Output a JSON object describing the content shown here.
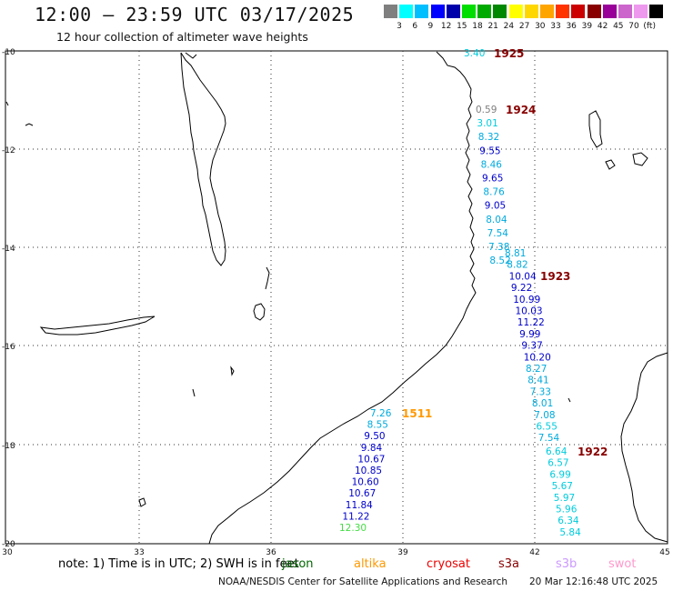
{
  "title": "12:00 – 23:59 UTC 03/17/2025",
  "subtitle": "12 hour collection of altimeter wave heights",
  "scale": {
    "colors": [
      "#7f7f7f",
      "#00ffff",
      "#00bfff",
      "#0000ff",
      "#0000aa",
      "#00dd00",
      "#00aa00",
      "#008800",
      "#ffff00",
      "#ffd700",
      "#ffa500",
      "#ff3300",
      "#cc0000",
      "#880000",
      "#990099",
      "#cc66cc",
      "#ee99ee",
      "#000000"
    ],
    "labels": [
      "3",
      "6",
      "9",
      "12",
      "15",
      "18",
      "21",
      "24",
      "27",
      "30",
      "33",
      "36",
      "39",
      "42",
      "45",
      "70",
      "(ft)"
    ]
  },
  "axes": {
    "lat_labels": [
      "-10",
      "-12",
      "-14",
      "-16",
      "-18",
      "-20"
    ],
    "lon_labels": [
      "30",
      "33",
      "36",
      "39",
      "42",
      "45"
    ]
  },
  "passes": [
    {
      "label": "1925",
      "color": "#880000"
    },
    {
      "label": "1924",
      "color": "#880000"
    },
    {
      "label": "1923",
      "color": "#880000"
    },
    {
      "label": "1922",
      "color": "#880000"
    },
    {
      "label": "1511",
      "color": "#ff9900"
    }
  ],
  "tracks": [
    {
      "name": "1925",
      "values": [
        {
          "v": "3.40",
          "c": "#00ccdd"
        }
      ]
    },
    {
      "name": "1924",
      "values": [
        {
          "v": "0.59",
          "c": "#7f7f7f"
        },
        {
          "v": "3.01",
          "c": "#00ccdd"
        },
        {
          "v": "8.32",
          "c": "#00aadd"
        },
        {
          "v": "9.55",
          "c": "#0000cc"
        },
        {
          "v": "8.46",
          "c": "#00aadd"
        },
        {
          "v": "9.65",
          "c": "#0000cc"
        },
        {
          "v": "8.76",
          "c": "#00aadd"
        },
        {
          "v": "9.05",
          "c": "#0000cc"
        },
        {
          "v": "8.04",
          "c": "#00aadd"
        },
        {
          "v": "7.54",
          "c": "#00aadd"
        },
        {
          "v": "7.38",
          "c": "#00aadd"
        },
        {
          "v": "8.52",
          "c": "#00aadd"
        }
      ]
    },
    {
      "name": "1923",
      "values": [
        {
          "v": "8.81",
          "c": "#00aadd"
        },
        {
          "v": "8.82",
          "c": "#00aadd"
        },
        {
          "v": "10.04",
          "c": "#0000cc"
        },
        {
          "v": "9.22",
          "c": "#0000cc"
        },
        {
          "v": "10.99",
          "c": "#0000cc"
        },
        {
          "v": "10.03",
          "c": "#0000cc"
        },
        {
          "v": "11.22",
          "c": "#0000cc"
        },
        {
          "v": "9.99",
          "c": "#0000cc"
        },
        {
          "v": "9.37",
          "c": "#0000cc"
        },
        {
          "v": "10.20",
          "c": "#0000cc"
        },
        {
          "v": "8.27",
          "c": "#00aadd"
        },
        {
          "v": "8.41",
          "c": "#00aadd"
        },
        {
          "v": "7.33",
          "c": "#00aadd"
        },
        {
          "v": "8.01",
          "c": "#00aadd"
        },
        {
          "v": "7.08",
          "c": "#00aadd"
        },
        {
          "v": "6.55",
          "c": "#00ccdd"
        },
        {
          "v": "7.54",
          "c": "#00aadd"
        }
      ]
    },
    {
      "name": "1922",
      "values": [
        {
          "v": "6.64",
          "c": "#00ccdd"
        },
        {
          "v": "6.57",
          "c": "#00ccdd"
        },
        {
          "v": "6.99",
          "c": "#00ccdd"
        },
        {
          "v": "5.67",
          "c": "#00ccdd"
        },
        {
          "v": "5.97",
          "c": "#00ccdd"
        },
        {
          "v": "5.96",
          "c": "#00ccdd"
        },
        {
          "v": "6.34",
          "c": "#00ccdd"
        },
        {
          "v": "5.84",
          "c": "#00ccdd"
        }
      ]
    },
    {
      "name": "1511",
      "values": [
        {
          "v": "7.26",
          "c": "#00aadd"
        },
        {
          "v": "8.55",
          "c": "#00aadd"
        },
        {
          "v": "9.50",
          "c": "#0000cc"
        },
        {
          "v": "9.84",
          "c": "#0000cc"
        },
        {
          "v": "10.67",
          "c": "#0000cc"
        },
        {
          "v": "10.85",
          "c": "#0000cc"
        },
        {
          "v": "10.60",
          "c": "#0000cc"
        },
        {
          "v": "10.67",
          "c": "#0000cc"
        },
        {
          "v": "11.84",
          "c": "#0000cc"
        },
        {
          "v": "11.22",
          "c": "#0000cc"
        },
        {
          "v": "12.30",
          "c": "#44dd44"
        }
      ]
    }
  ],
  "note": {
    "prefix": "note: 1) Time is in UTC; 2) SWH is in feet",
    "satellites": [
      {
        "name": "jason",
        "color": "#006600"
      },
      {
        "name": "altika",
        "color": "#ff9900"
      },
      {
        "name": "cryosat",
        "color": "#ee0000"
      },
      {
        "name": "s3a",
        "color": "#880000"
      },
      {
        "name": "s3b",
        "color": "#cc99ff"
      },
      {
        "name": "swot",
        "color": "#ff99cc"
      }
    ]
  },
  "footer": {
    "left": "NOAA/NESDIS Center for Satellite Applications and Research",
    "right": "20 Mar 12:16:48 UTC 2025"
  }
}
